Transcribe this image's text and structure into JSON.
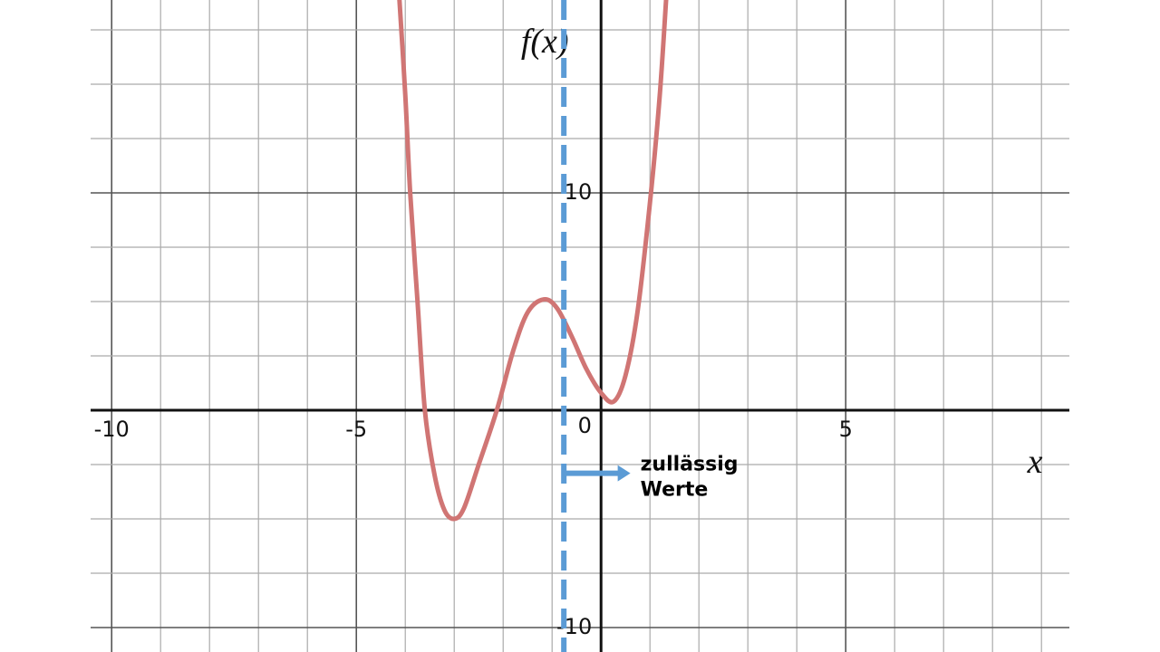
{
  "chart_data": {
    "type": "line",
    "x_label": "x",
    "y_label": "f(x)",
    "xlim": [
      -10.43,
      9.57
    ],
    "ylim": [
      -11.125,
      18.875
    ],
    "xticks": [
      -10,
      -5,
      0,
      5
    ],
    "yticks": [
      -10,
      10
    ],
    "x_grid_step": 1,
    "y_grid_step": 2.5,
    "grid": true,
    "series": [
      {
        "color": "#d07574",
        "x": [
          -4.12,
          -4.0,
          -3.9,
          -3.75,
          -3.6,
          -3.4,
          -3.2,
          -3.0,
          -2.8,
          -2.5,
          -2.13,
          -1.8,
          -1.5,
          -1.17,
          -0.9,
          -0.6,
          -0.3,
          0.0,
          0.26,
          0.5,
          0.75,
          1.02,
          1.2,
          1.33
        ],
        "values": [
          18.9,
          14.5,
          10,
          5,
          0,
          -3,
          -4.6,
          -5,
          -4.5,
          -2.5,
          0,
          2.7,
          4.5,
          5.1,
          4.7,
          3.4,
          1.9,
          0.8,
          0.4,
          1.6,
          4.6,
          10,
          14.5,
          18.9
        ]
      }
    ],
    "vline": {
      "x": -0.76,
      "color": "#5b9bd5"
    },
    "annotation": {
      "lines": [
        "zullässig",
        "Werte"
      ],
      "arrow_x": 0.6,
      "y": -2.9
    }
  }
}
